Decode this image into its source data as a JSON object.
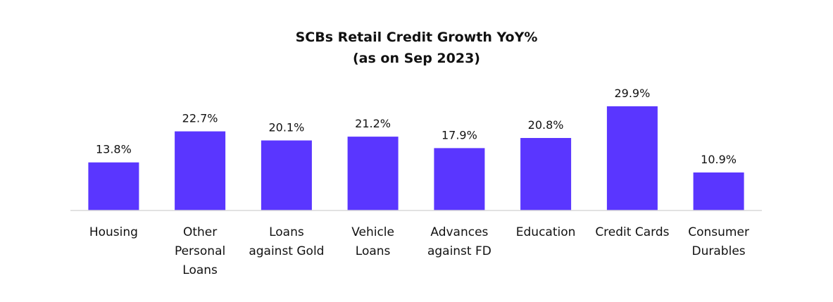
{
  "chart_data": {
    "type": "bar",
    "title": "SCBs Retail Credit Growth  YoY%",
    "subtitle": "(as on Sep 2023)",
    "categories": [
      [
        "Housing"
      ],
      [
        "Other",
        "Personal",
        "Loans"
      ],
      [
        "Loans",
        "against Gold"
      ],
      [
        "Vehicle",
        "Loans"
      ],
      [
        "Advances",
        "against FD"
      ],
      [
        "Education"
      ],
      [
        "Credit Cards"
      ],
      [
        "Consumer",
        "Durables"
      ]
    ],
    "values": [
      13.8,
      22.7,
      20.1,
      21.2,
      17.9,
      20.8,
      29.9,
      10.9
    ],
    "data_labels": [
      "13.8%",
      "22.7%",
      "20.1%",
      "21.2%",
      "17.9%",
      "20.8%",
      "29.9%",
      "10.9%"
    ],
    "ylim": [
      0,
      30
    ],
    "y_axis_visible": false,
    "grid": false,
    "legend": "none",
    "colors": {
      "bar": "#5A36FF",
      "axis": "#D9D9D9",
      "text": "#111111"
    }
  }
}
